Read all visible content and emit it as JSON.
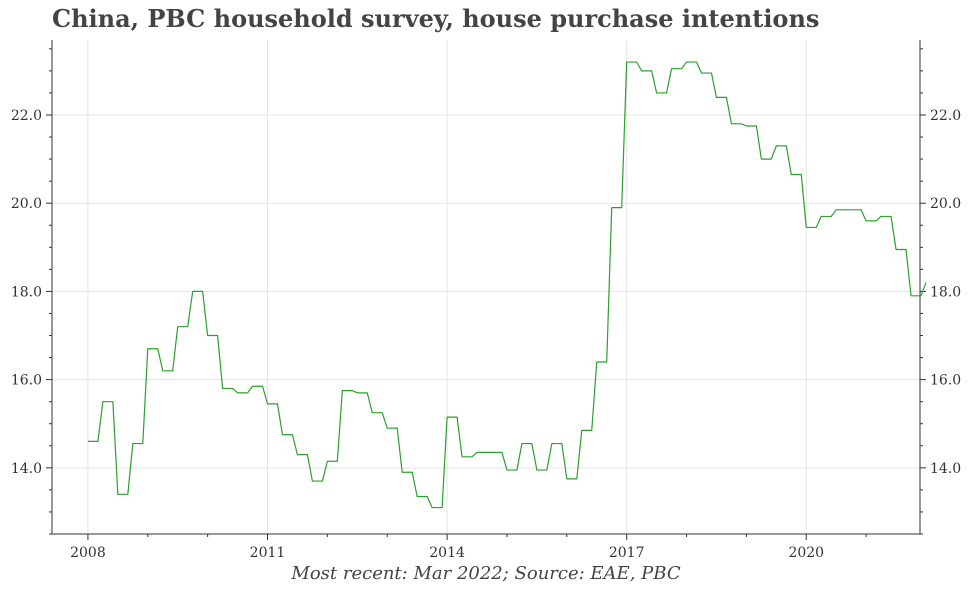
{
  "title": "China, PBC household survey, house purchase intentions",
  "footer": "Most recent: Mar 2022; Source: EAE, PBC",
  "colors": {
    "line": "#2ca02c",
    "grid": "#e5e5e5",
    "axis": "#333333"
  },
  "chart_data": {
    "type": "line",
    "title": "China, PBC household survey, house purchase intentions",
    "xlabel": "",
    "ylabel": "",
    "x_ticks": [
      "2008",
      "2011",
      "2014",
      "2017",
      "2020"
    ],
    "y_ticks": [
      "14.0",
      "16.0",
      "18.0",
      "20.0",
      "22.0"
    ],
    "xlim": [
      2007.4,
      2021.9
    ],
    "ylim": [
      12.5,
      23.7
    ],
    "grid": true,
    "series": [
      {
        "values": [
          [
            2008.0,
            14.6
          ],
          [
            2008.25,
            15.5
          ],
          [
            2008.5,
            13.4
          ],
          [
            2008.75,
            14.55
          ],
          [
            2009.0,
            16.7
          ],
          [
            2009.25,
            16.2
          ],
          [
            2009.5,
            17.2
          ],
          [
            2009.75,
            18.0
          ],
          [
            2010.0,
            17.0
          ],
          [
            2010.25,
            15.8
          ],
          [
            2010.5,
            15.7
          ],
          [
            2010.75,
            15.85
          ],
          [
            2011.0,
            15.45
          ],
          [
            2011.25,
            14.75
          ],
          [
            2011.5,
            14.3
          ],
          [
            2011.75,
            13.7
          ],
          [
            2012.0,
            14.15
          ],
          [
            2012.25,
            15.75
          ],
          [
            2012.5,
            15.7
          ],
          [
            2012.75,
            15.25
          ],
          [
            2013.0,
            14.9
          ],
          [
            2013.25,
            13.9
          ],
          [
            2013.5,
            13.35
          ],
          [
            2013.75,
            13.1
          ],
          [
            2014.0,
            15.15
          ],
          [
            2014.25,
            14.25
          ],
          [
            2014.5,
            14.35
          ],
          [
            2014.75,
            14.35
          ],
          [
            2015.0,
            13.95
          ],
          [
            2015.25,
            14.55
          ],
          [
            2015.5,
            13.95
          ],
          [
            2015.75,
            14.55
          ],
          [
            2016.0,
            13.75
          ],
          [
            2016.25,
            14.85
          ],
          [
            2016.5,
            16.4
          ],
          [
            2016.75,
            19.9
          ],
          [
            2017.0,
            23.2
          ],
          [
            2017.25,
            23.0
          ],
          [
            2017.5,
            22.5
          ],
          [
            2017.75,
            23.05
          ],
          [
            2018.0,
            23.2
          ],
          [
            2018.25,
            22.95
          ],
          [
            2018.5,
            22.4
          ],
          [
            2018.75,
            21.8
          ],
          [
            2019.0,
            21.75
          ],
          [
            2019.25,
            21.0
          ],
          [
            2019.5,
            21.3
          ],
          [
            2019.75,
            20.65
          ],
          [
            2020.0,
            19.45
          ],
          [
            2020.25,
            19.7
          ],
          [
            2020.5,
            19.85
          ],
          [
            2020.75,
            19.85
          ],
          [
            2021.0,
            19.6
          ],
          [
            2021.25,
            19.7
          ],
          [
            2021.5,
            18.95
          ],
          [
            2021.75,
            17.9
          ],
          [
            2022.0,
            18.2
          ]
        ]
      }
    ]
  }
}
